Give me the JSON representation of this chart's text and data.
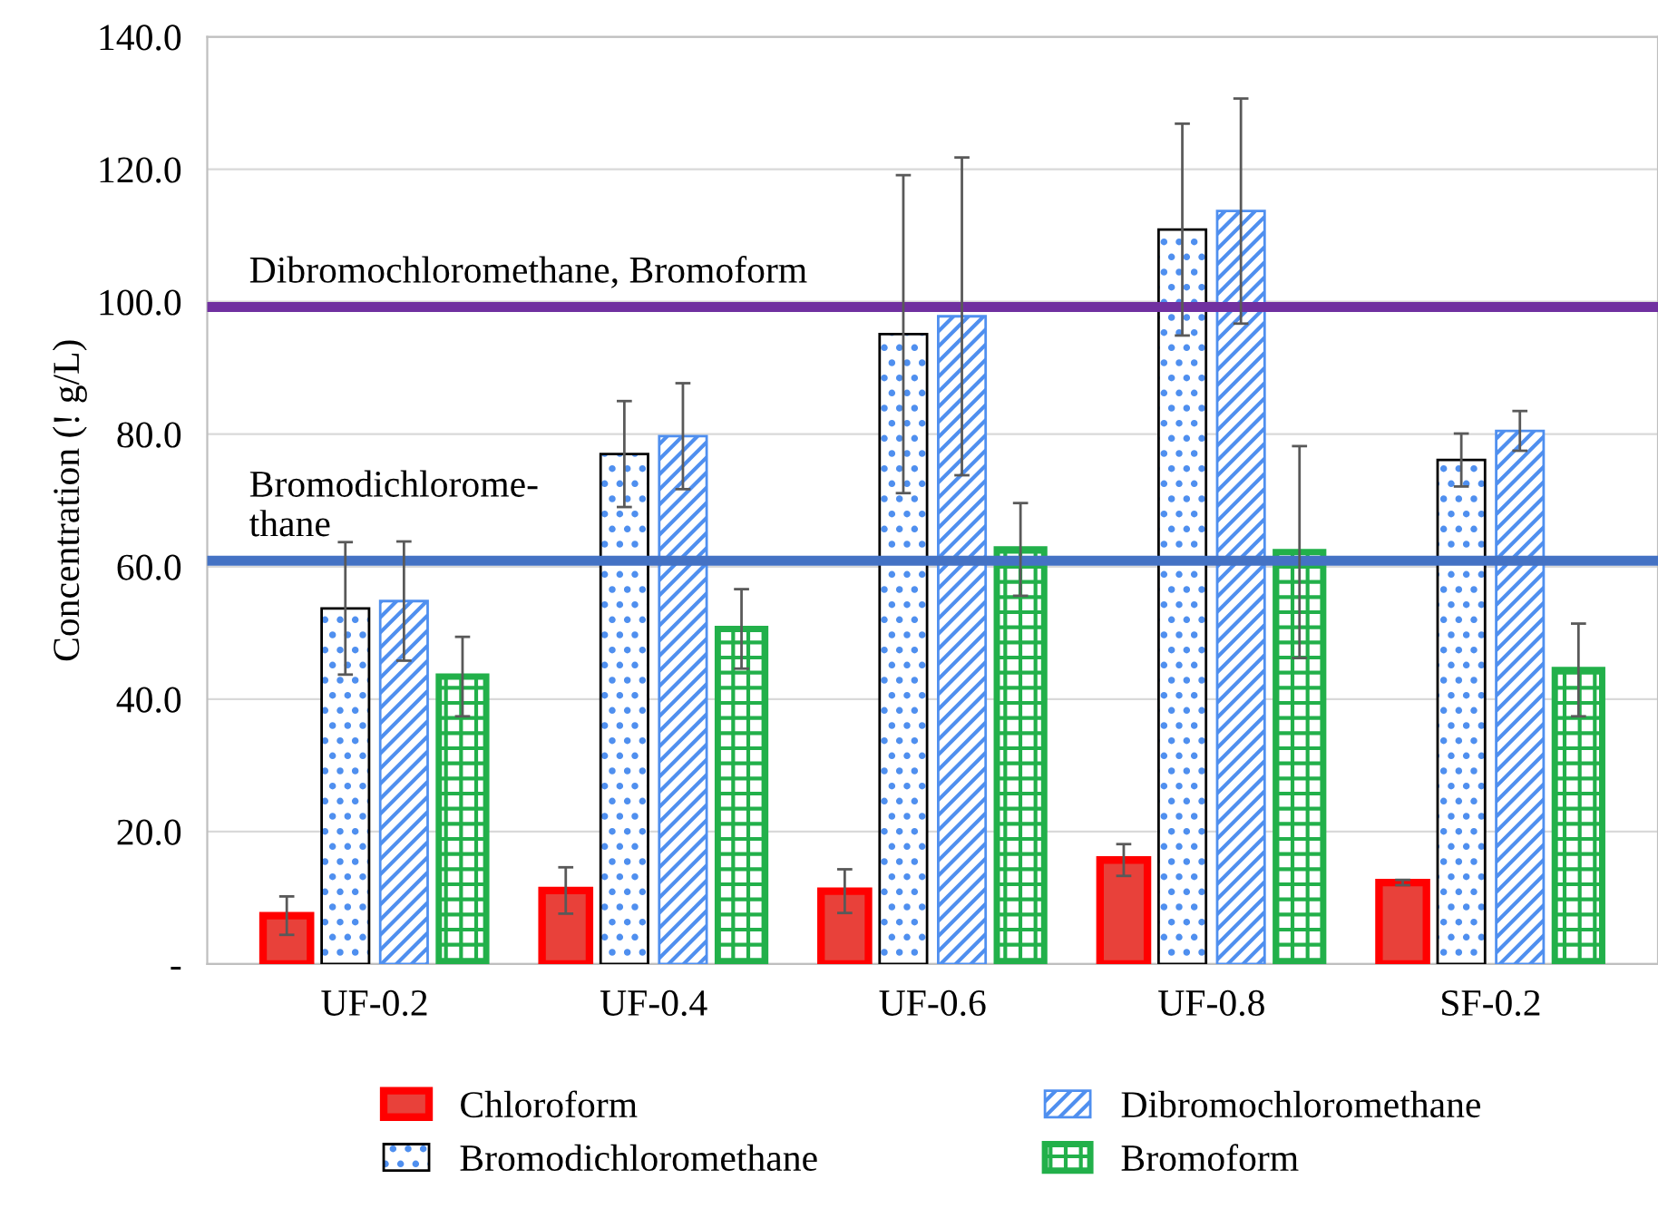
{
  "chart_data": {
    "type": "bar",
    "ylabel": "Concentration (! g/L)",
    "categories": [
      "UF-0.2",
      "UF-0.4",
      "UF-0.6",
      "UF-0.8",
      "SF-0.2"
    ],
    "series": [
      {
        "name": "Chloroform",
        "color": "#ff0000",
        "values": [
          7.3,
          11.1,
          11.0,
          15.7,
          12.3
        ],
        "errors": [
          2.9,
          3.5,
          3.3,
          2.4,
          0.4
        ]
      },
      {
        "name": "Bromodichloromethane",
        "color": "#000000",
        "values": [
          53.7,
          77.0,
          95.1,
          110.9,
          76.1
        ],
        "errors": [
          10,
          8,
          24,
          16,
          4
        ]
      },
      {
        "name": "Dibromochloromethane",
        "color": "#4f8fef",
        "values": [
          54.8,
          79.7,
          97.8,
          113.7,
          80.5
        ],
        "errors": [
          9,
          8,
          24,
          17,
          3
        ]
      },
      {
        "name": "Bromoform",
        "color": "#22b04a",
        "values": [
          43.4,
          50.6,
          62.6,
          62.2,
          44.4
        ],
        "errors": [
          6,
          6,
          7,
          16,
          7
        ]
      }
    ],
    "ylim": [
      0,
      140
    ],
    "yticks": [
      {
        "value": 0,
        "label": "-"
      },
      {
        "value": 20,
        "label": "20.0"
      },
      {
        "value": 40,
        "label": "40.0"
      },
      {
        "value": 60,
        "label": "60.0"
      },
      {
        "value": 80,
        "label": "80.0"
      },
      {
        "value": 100,
        "label": "100.0"
      },
      {
        "value": 120,
        "label": "120.0"
      },
      {
        "value": 140,
        "label": "140.0"
      }
    ],
    "ref_lines": [
      {
        "axis": "y",
        "value": 99.2,
        "label": "Dibromochloromethane, Bromoform",
        "color": "#7030a0"
      },
      {
        "axis": "y",
        "value": 60.9,
        "label": "Bromodichlorome-\nthane",
        "color": "#4472c4"
      }
    ],
    "grid": "y",
    "legend": "bottom"
  }
}
